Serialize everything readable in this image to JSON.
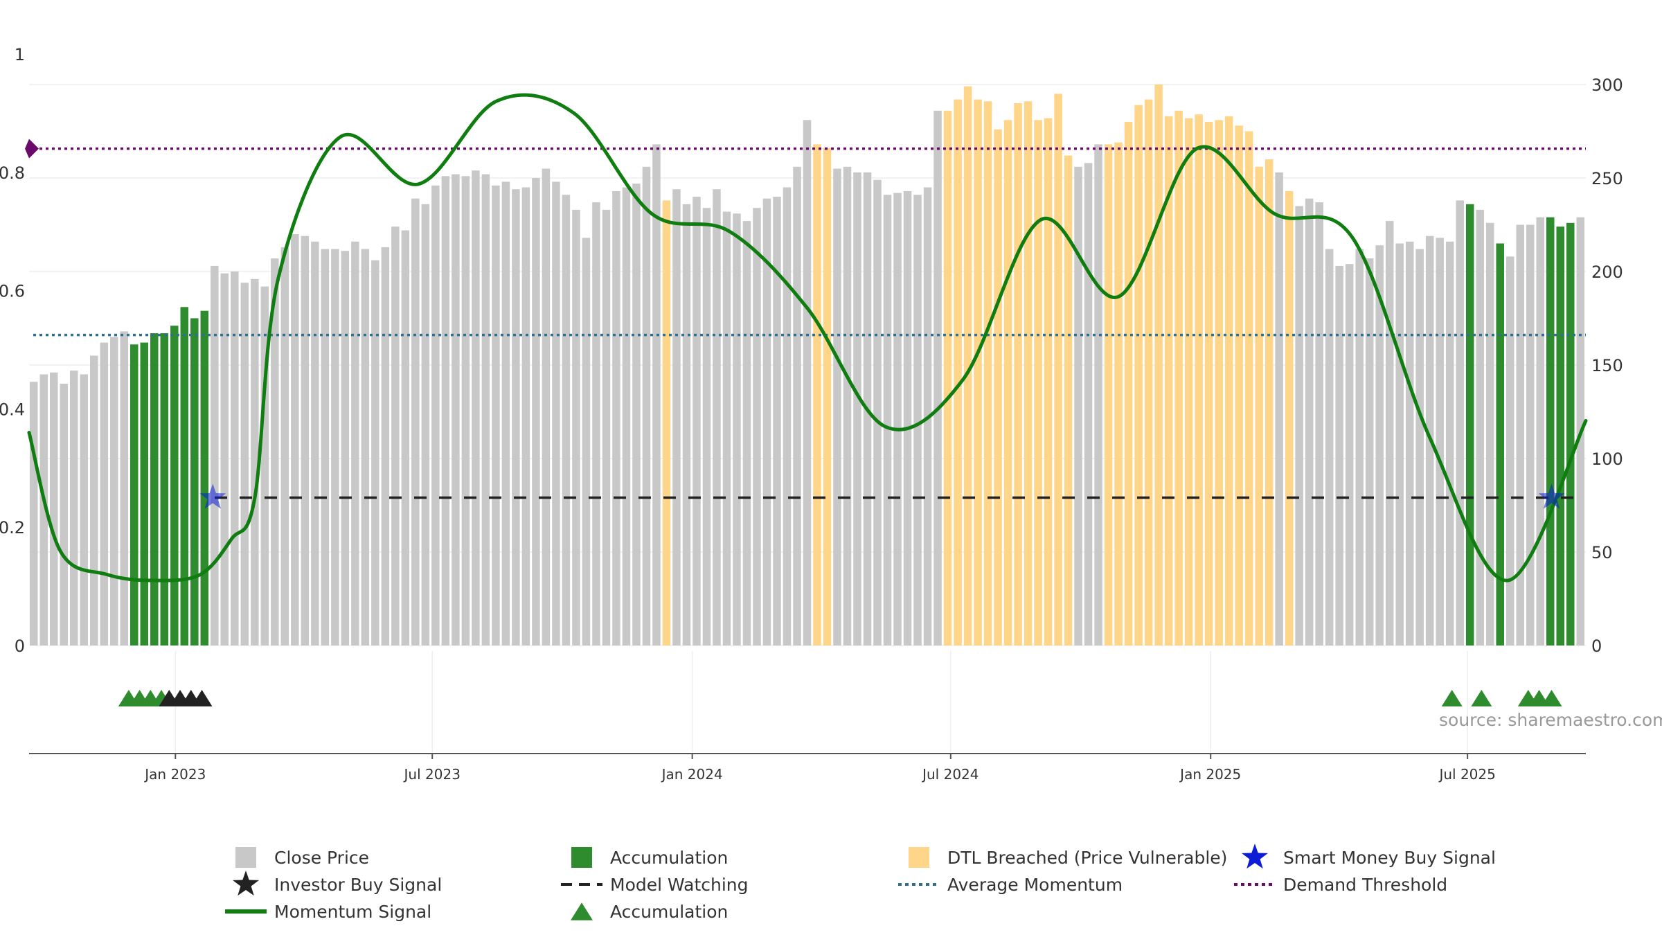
{
  "source_label": "source: sharemaestro.com",
  "chart_data": {
    "type": "bar",
    "left_axis": {
      "range": [
        0,
        1
      ],
      "ticks": [
        "0",
        "0.2",
        "0.4",
        "0.6",
        "0.8",
        "1"
      ]
    },
    "right_axis": {
      "range": [
        0,
        300
      ],
      "ticks": [
        "0",
        "50",
        "100",
        "150",
        "200",
        "250",
        "300"
      ]
    },
    "x_ticks": [
      "Jan 2023",
      "Jul 2023",
      "Jan 2024",
      "Jul 2024",
      "Jan 2025",
      "Jul 2025"
    ],
    "colors": {
      "close": "#c8c8c8",
      "accumulation": "#2e8b2e",
      "dtl": "#ffd58a",
      "momentum": "#0f7d0f",
      "model_watching": "#222222",
      "average_momentum": "#2f6f8f",
      "demand_threshold": "#6a0a6a",
      "smart_money": "#0b1ed6"
    },
    "close_price": [
      141,
      145,
      146,
      140,
      147,
      145,
      155,
      162,
      165,
      168,
      161,
      162,
      167,
      167,
      171,
      181,
      175,
      179,
      203,
      199,
      200,
      194,
      196,
      192,
      207,
      213,
      220,
      219,
      216,
      212,
      212,
      211,
      216,
      212,
      206,
      213,
      224,
      222,
      239,
      236,
      246,
      251,
      252,
      251,
      254,
      252,
      246,
      248,
      244,
      245,
      250,
      255,
      248,
      241,
      233,
      218,
      237,
      233,
      243,
      245,
      247,
      256,
      268,
      238,
      244,
      236,
      240,
      234,
      244,
      232,
      231,
      227,
      234,
      239,
      240,
      245,
      256,
      281,
      268,
      266,
      255,
      256,
      253,
      253,
      249,
      241,
      242,
      243,
      241,
      245,
      286,
      286,
      292,
      299,
      292,
      291,
      276,
      281,
      290,
      291,
      281,
      282,
      295,
      262,
      256,
      258,
      268,
      268,
      269,
      280,
      289,
      292,
      300,
      283,
      286,
      282,
      284,
      280,
      281,
      283,
      278,
      275,
      256,
      260,
      253,
      243,
      235,
      239,
      237,
      212,
      203,
      204,
      212,
      207,
      214,
      227,
      215,
      216,
      212,
      219,
      218,
      216,
      238,
      236,
      233,
      226,
      215,
      208,
      225,
      225,
      229,
      229,
      224,
      226,
      229
    ],
    "accumulation_indices": [
      10,
      11,
      12,
      13,
      14,
      15,
      16,
      17
    ],
    "accumulation_indices_late": [
      143,
      146,
      151,
      152,
      153
    ],
    "dtl_indices": [
      63,
      78,
      79,
      91,
      92,
      93,
      94,
      95,
      96,
      97,
      98,
      99,
      100,
      101,
      102,
      103,
      107,
      108,
      109,
      110,
      111,
      112,
      113,
      114,
      115,
      116,
      117,
      118,
      119,
      120,
      121,
      122,
      123,
      125
    ],
    "momentum_signal": {
      "t": [
        0,
        0.02,
        0.05,
        0.08,
        0.11,
        0.13,
        0.145,
        0.16,
        0.2,
        0.25,
        0.3,
        0.35,
        0.4,
        0.45,
        0.5,
        0.55,
        0.6,
        0.65,
        0.7,
        0.75,
        0.8,
        0.85,
        0.9,
        0.95,
        1.0
      ],
      "values": [
        0.36,
        0.16,
        0.12,
        0.11,
        0.12,
        0.18,
        0.25,
        0.62,
        0.86,
        0.78,
        0.92,
        0.9,
        0.73,
        0.7,
        0.57,
        0.37,
        0.45,
        0.72,
        0.59,
        0.84,
        0.73,
        0.69,
        0.35,
        0.11,
        0.38
      ]
    },
    "average_momentum": 0.525,
    "demand_threshold": 0.84,
    "model_watching_level": 0.25,
    "smart_money_buy_signals": [
      {
        "date": "Jan 2023",
        "t": 0.118,
        "value": 0.25
      },
      {
        "date": "Sep 2025",
        "t": 0.978,
        "value": 0.25
      }
    ],
    "investor_buy_signals": {
      "t": [
        0.09,
        0.097,
        0.104,
        0.111
      ]
    },
    "accumulation_markers": {
      "t": [
        0.064,
        0.071,
        0.078,
        0.085,
        0.914,
        0.933,
        0.963,
        0.97,
        0.978
      ]
    },
    "legend": [
      {
        "label": "Close Price",
        "symbol": "square",
        "color_key": "close"
      },
      {
        "label": "Accumulation",
        "symbol": "square",
        "color_key": "accumulation"
      },
      {
        "label": "DTL Breached (Price Vulnerable)",
        "symbol": "square",
        "color_key": "dtl"
      },
      {
        "label": "Smart Money Buy Signal",
        "symbol": "star",
        "color_key": "smart_money"
      },
      {
        "label": "Investor Buy Signal",
        "symbol": "star",
        "color_key": "model_watching"
      },
      {
        "label": "Model Watching",
        "symbol": "dash",
        "color_key": "model_watching"
      },
      {
        "label": "Average Momentum",
        "symbol": "dot",
        "color_key": "average_momentum"
      },
      {
        "label": "Demand Threshold",
        "symbol": "dot",
        "color_key": "demand_threshold"
      },
      {
        "label": "Momentum Signal",
        "symbol": "line",
        "color_key": "momentum"
      },
      {
        "label": "Accumulation",
        "symbol": "triangle",
        "color_key": "accumulation"
      }
    ]
  }
}
